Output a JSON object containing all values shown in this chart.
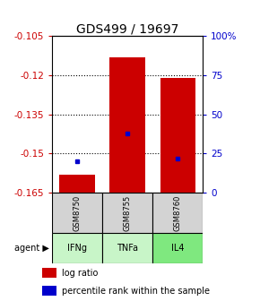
{
  "title": "GDS499 / 19697",
  "samples": [
    "GSM8750",
    "GSM8755",
    "GSM8760"
  ],
  "agents": [
    "IFNg",
    "TNFa",
    "IL4"
  ],
  "agent_colors": [
    "#c8f5c8",
    "#c8f5c8",
    "#7fe87f"
  ],
  "log_ratios": [
    -0.158,
    -0.113,
    -0.121
  ],
  "percentile_ranks": [
    20,
    38,
    22
  ],
  "ymin": -0.165,
  "ymax": -0.105,
  "yticks_left": [
    -0.105,
    -0.12,
    -0.135,
    -0.15,
    -0.165
  ],
  "yticks_right_vals": [
    0,
    25,
    50,
    75,
    100
  ],
  "yticks_right_labels": [
    "0",
    "25",
    "50",
    "75",
    "100%"
  ],
  "bar_color": "#cc0000",
  "dot_color": "#0000cc",
  "left_axis_color": "#cc0000",
  "right_axis_color": "#0000cc",
  "title_fontsize": 10,
  "tick_fontsize": 7.5,
  "bar_width": 0.7,
  "grid_lines": [
    -0.12,
    -0.135,
    -0.15
  ]
}
